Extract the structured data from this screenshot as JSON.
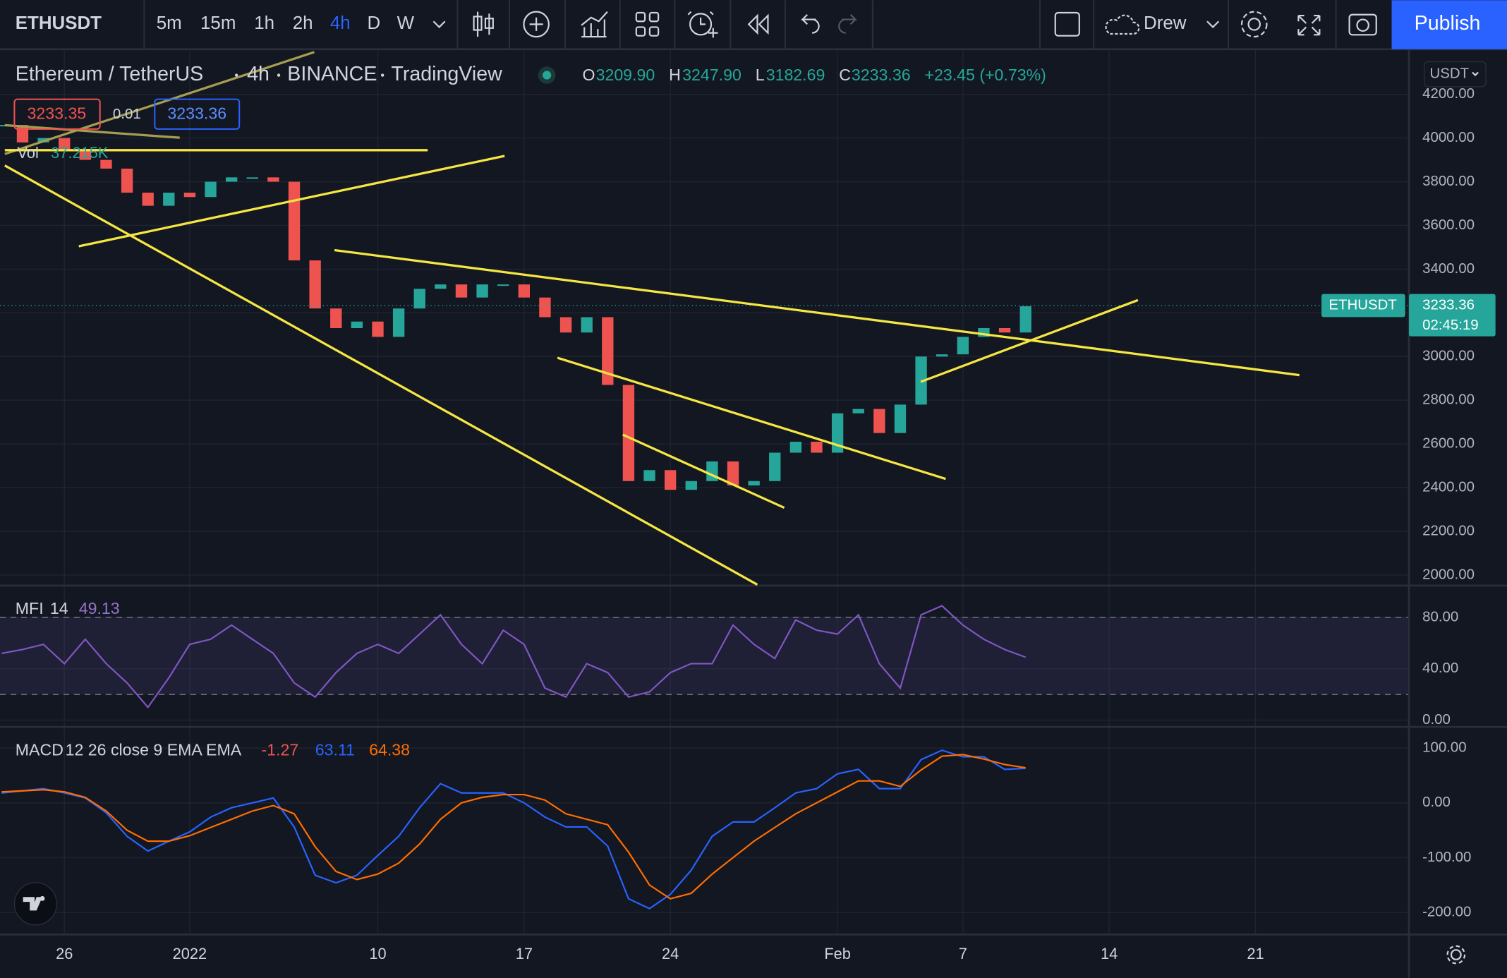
{
  "toolbar": {
    "symbol": "ETHUSDT",
    "intervals": [
      "5m",
      "15m",
      "1h",
      "2h",
      "4h",
      "D",
      "W"
    ],
    "active_interval_index": 4,
    "drawing_template": "Drew",
    "publish": "Publish"
  },
  "legend": {
    "name": "Ethereum / TetherUS",
    "interval": "4h",
    "exchange": "BINANCE",
    "source": "TradingView",
    "ohlc": [
      [
        "O",
        "3209.90"
      ],
      [
        "H",
        "3247.90"
      ],
      [
        "L",
        "3182.69"
      ],
      [
        "C",
        "3233.36"
      ]
    ],
    "change": "+23.45 (+0.73%)"
  },
  "price_boxes": [
    "3233.35",
    "0.01",
    "3233.36"
  ],
  "volume": {
    "label": "Vol",
    "value": "37.215K"
  },
  "currency": "USDT",
  "last_price": {
    "symbol": "ETHUSDT",
    "value": 3233.36,
    "label": "3233.36",
    "countdown": "02:45:19"
  },
  "xlim": [
    -3.08,
    64.3
  ],
  "xticks": [
    {
      "value": 0,
      "label": "26"
    },
    {
      "value": 6,
      "label": "2022"
    },
    {
      "value": 15,
      "label": "10"
    },
    {
      "value": 22,
      "label": "17"
    },
    {
      "value": 29,
      "label": "24"
    },
    {
      "value": 37,
      "label": "Feb"
    },
    {
      "value": 43,
      "label": "7"
    },
    {
      "value": 50,
      "label": "14"
    },
    {
      "value": 57,
      "label": "21"
    }
  ],
  "x": [
    -3,
    -2,
    -1,
    0,
    1,
    2,
    3,
    4,
    5,
    6,
    7,
    8,
    9,
    10,
    11,
    12,
    13,
    14,
    15,
    16,
    17,
    18,
    19,
    20,
    21,
    22,
    23,
    24,
    25,
    26,
    27,
    28,
    29,
    30,
    31,
    32,
    33,
    34,
    35,
    36,
    37,
    38,
    39,
    40,
    41,
    42,
    43,
    44,
    45,
    46
  ],
  "price": {
    "type": "candlestick",
    "up_color": "#26a69a",
    "down_color": "#ef5350",
    "ylim": [
      1956,
      4402
    ],
    "yticks": [
      {
        "value": 4200,
        "label": "4200.00"
      },
      {
        "value": 4000,
        "label": "4000.00"
      },
      {
        "value": 3800,
        "label": "3800.00"
      },
      {
        "value": 3600,
        "label": "3600.00"
      },
      {
        "value": 3400,
        "label": "3400.00"
      },
      {
        "value": 3200,
        "label": "3200.00"
      },
      {
        "value": 3000,
        "label": "3000.00"
      },
      {
        "value": 2800,
        "label": "2800.00"
      },
      {
        "value": 2600,
        "label": "2600.00"
      },
      {
        "value": 2400,
        "label": "2400.00"
      },
      {
        "value": 2200,
        "label": "2200.00"
      },
      {
        "value": 2000,
        "label": "2000.00"
      }
    ],
    "closes": [
      4060,
      3980,
      4000,
      3950,
      3900,
      3860,
      3750,
      3690,
      3750,
      3730,
      3800,
      3820,
      3820,
      3800,
      3440,
      3220,
      3130,
      3160,
      3090,
      3220,
      3310,
      3330,
      3270,
      3330,
      3330,
      3270,
      3180,
      3110,
      3180,
      2870,
      2430,
      2480,
      2390,
      2430,
      2520,
      2410,
      2430,
      2560,
      2610,
      2560,
      2740,
      2760,
      2650,
      2780,
      3000,
      3010,
      3090,
      3130,
      3110,
      3230
    ]
  },
  "mfi": {
    "type": "line",
    "name": "MFI",
    "length": "14",
    "last": "49.13",
    "color": "#7e57c2",
    "ylim": [
      -4.5,
      104
    ],
    "band": [
      20,
      80
    ],
    "yticks": [
      {
        "value": 80,
        "label": "80.00"
      },
      {
        "value": 40,
        "label": "40.00"
      },
      {
        "value": 0,
        "label": "0.00"
      }
    ],
    "values": [
      52,
      55,
      59,
      44,
      63,
      44,
      29,
      10,
      33,
      59,
      63,
      74,
      63,
      52,
      29,
      18,
      37,
      52,
      59,
      52,
      67,
      82,
      59,
      44,
      70,
      59,
      25,
      18,
      44,
      37,
      18,
      22,
      37,
      44,
      44,
      74,
      59,
      48,
      78,
      70,
      67,
      82,
      44,
      25,
      82,
      89,
      74,
      63,
      55,
      49
    ]
  },
  "macd": {
    "type": "line",
    "name": "MACD",
    "params": "12 26 close 9 EMA EMA",
    "last_values": [
      "-1.27",
      "63.11",
      "64.38"
    ],
    "last_colors": [
      "#ef5350",
      "#2962ff",
      "#ff6d00"
    ],
    "ylim": [
      -236.8,
      136.8
    ],
    "yticks": [
      {
        "value": 100,
        "label": "100.00"
      },
      {
        "value": 0,
        "label": "0.00"
      },
      {
        "value": -100,
        "label": "-100.00"
      },
      {
        "value": -200,
        "label": "-200.00"
      }
    ],
    "series": [
      {
        "color": "#2962ff",
        "values": [
          18,
          22,
          26,
          18,
          9,
          -18,
          -61,
          -88,
          -70,
          -53,
          -26,
          -9,
          0,
          9,
          -44,
          -132,
          -146,
          -132,
          -96,
          -61,
          -9,
          35,
          18,
          18,
          18,
          0,
          -26,
          -44,
          -44,
          -79,
          -175,
          -193,
          -167,
          -123,
          -61,
          -35,
          -35,
          -9,
          18,
          26,
          53,
          61,
          26,
          26,
          79,
          96,
          84,
          84,
          61,
          63
        ]
      },
      {
        "color": "#ff6d00",
        "values": [
          20,
          22,
          24,
          20,
          10,
          -15,
          -50,
          -70,
          -70,
          -60,
          -45,
          -30,
          -15,
          -5,
          -20,
          -80,
          -125,
          -140,
          -130,
          -110,
          -75,
          -30,
          0,
          10,
          15,
          15,
          5,
          -20,
          -30,
          -40,
          -90,
          -150,
          -175,
          -165,
          -130,
          -100,
          -70,
          -45,
          -20,
          0,
          20,
          40,
          40,
          30,
          60,
          85,
          88,
          80,
          70,
          64
        ]
      }
    ]
  }
}
